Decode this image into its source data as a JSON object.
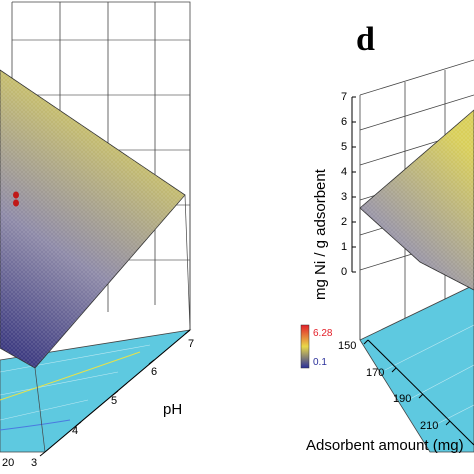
{
  "panel_letter": "d",
  "colors": {
    "floor": "#5ec9e0",
    "surface_low": "#2f2d7a",
    "surface_mid": "#8e8aa8",
    "surface_high": "#d9cf5a",
    "legend_high": "#e4202a",
    "legend_low": "#2a2f9a",
    "grid": "#444444",
    "contour": "#e6e24a"
  },
  "legend": {
    "max_label": "6.28",
    "min_label": "0.1"
  },
  "chart_data": [
    {
      "type": "surface",
      "description_axis_labels": true,
      "title": "",
      "xlabel": "pH",
      "x_ticks": [
        "3",
        "4",
        "5",
        "6",
        "7"
      ],
      "y_ticks": [
        "20"
      ],
      "xlim": [
        3,
        7
      ]
    },
    {
      "type": "surface",
      "title": "",
      "xlabel": "Adsorbent amount (mg)",
      "zlabel": "mg Ni / g adsorbent",
      "x_ticks": [
        "150",
        "170",
        "190",
        "210"
      ],
      "z_ticks": [
        "0",
        "1",
        "2",
        "3",
        "4",
        "5",
        "6",
        "7"
      ],
      "zlim": [
        0,
        7
      ]
    }
  ]
}
